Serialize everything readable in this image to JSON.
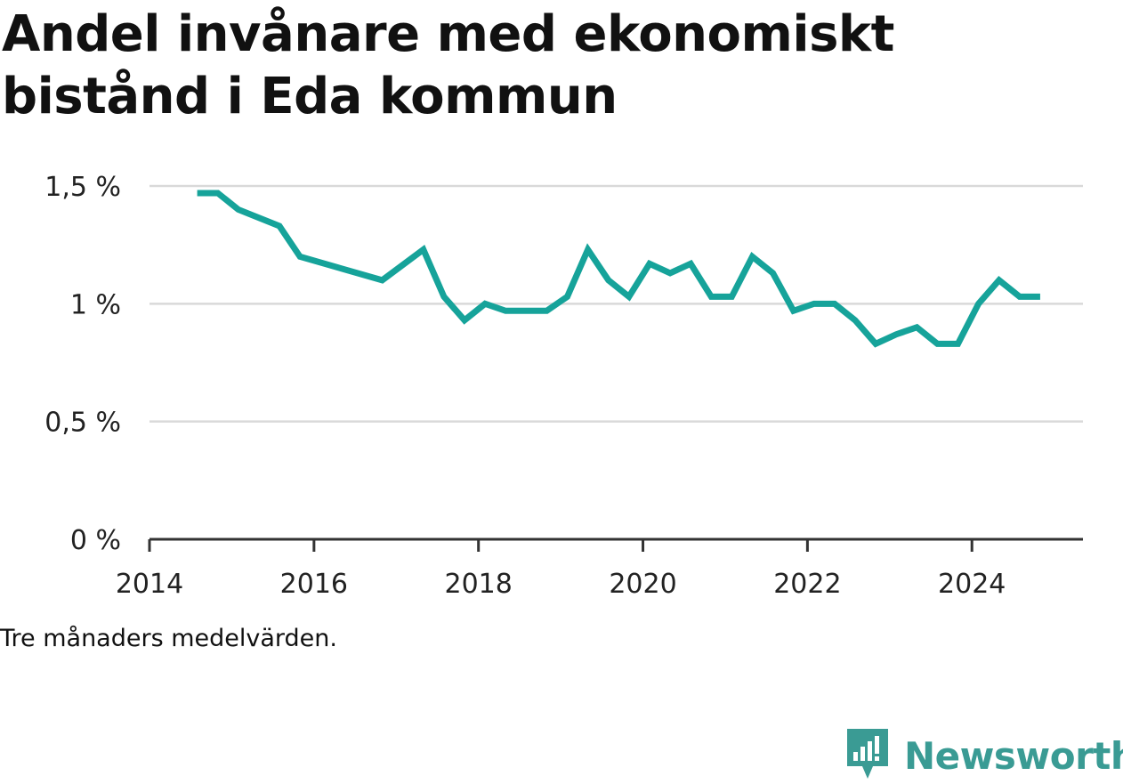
{
  "title": "Andel invånare med ekonomiskt bistånd i Eda kommun",
  "footnote": "Tre månaders medelvärden.",
  "brand": {
    "name": "Newsworthy",
    "icon": "newsworthy-logo-icon",
    "color": "#3a9b94"
  },
  "colors": {
    "line": "#16a39a",
    "grid": "#d9d9d9",
    "axis": "#333333",
    "text": "#222222"
  },
  "chart_data": {
    "type": "line",
    "title": "Andel invånare med ekonomiskt bistånd i Eda kommun",
    "xlabel": "",
    "ylabel": "",
    "xlim": [
      2014,
      2025.35
    ],
    "ylim": [
      0,
      1.5
    ],
    "grid": true,
    "x_ticks": [
      2014,
      2016,
      2018,
      2020,
      2022,
      2024
    ],
    "y_ticks": [
      0,
      0.5,
      1,
      1.5
    ],
    "y_tick_labels": [
      "0 %",
      "0,5 %",
      "1 %",
      "1,5 %"
    ],
    "x": [
      2014.58,
      2014.83,
      2015.08,
      2015.58,
      2015.83,
      2016.83,
      2017.33,
      2017.58,
      2017.83,
      2018.08,
      2018.33,
      2018.58,
      2018.83,
      2019.08,
      2019.33,
      2019.58,
      2019.83,
      2020.08,
      2020.33,
      2020.58,
      2020.83,
      2021.08,
      2021.33,
      2021.58,
      2021.83,
      2022.08,
      2022.33,
      2022.58,
      2022.83,
      2023.08,
      2023.33,
      2023.58,
      2023.83,
      2024.08,
      2024.33,
      2024.58,
      2024.83
    ],
    "series": [
      {
        "values": [
          1.47,
          1.47,
          1.4,
          1.33,
          1.2,
          1.1,
          1.23,
          1.03,
          0.93,
          1.0,
          0.97,
          0.97,
          0.97,
          1.03,
          1.23,
          1.1,
          1.03,
          1.17,
          1.13,
          1.17,
          1.03,
          1.03,
          1.2,
          1.13,
          0.97,
          1.0,
          1.0,
          0.93,
          0.83,
          0.87,
          0.9,
          0.83,
          0.83,
          1.0,
          1.1,
          1.03,
          1.03
        ]
      }
    ]
  }
}
